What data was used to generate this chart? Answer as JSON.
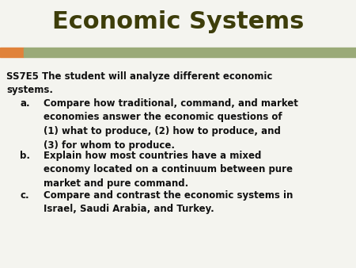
{
  "title": "Economic Systems",
  "title_color": "#3d3d0a",
  "title_fontsize": 22,
  "title_fontweight": "bold",
  "background_color": "#f4f4ef",
  "stripe_color_olive": "#9aaa78",
  "stripe_color_orange": "#e0823a",
  "body_text_color": "#111111",
  "body_fontsize": 8.5,
  "intro_text": "SS7E5 The student will analyze different economic\nsystems.",
  "bullet_a_label": "a.",
  "bullet_a_text": "Compare how traditional, command, and market\neconomies answer the economic questions of\n(1) what to produce, (2) how to produce, and\n(3) for whom to produce.",
  "bullet_b_label": "b.",
  "bullet_b_text": "Explain how most countries have a mixed\neconomy located on a continuum between pure\nmarket and pure command.",
  "bullet_c_label": "c.",
  "bullet_c_text": "Compare and contrast the economic systems in\nIsrael, Saudi Arabia, and Turkey."
}
